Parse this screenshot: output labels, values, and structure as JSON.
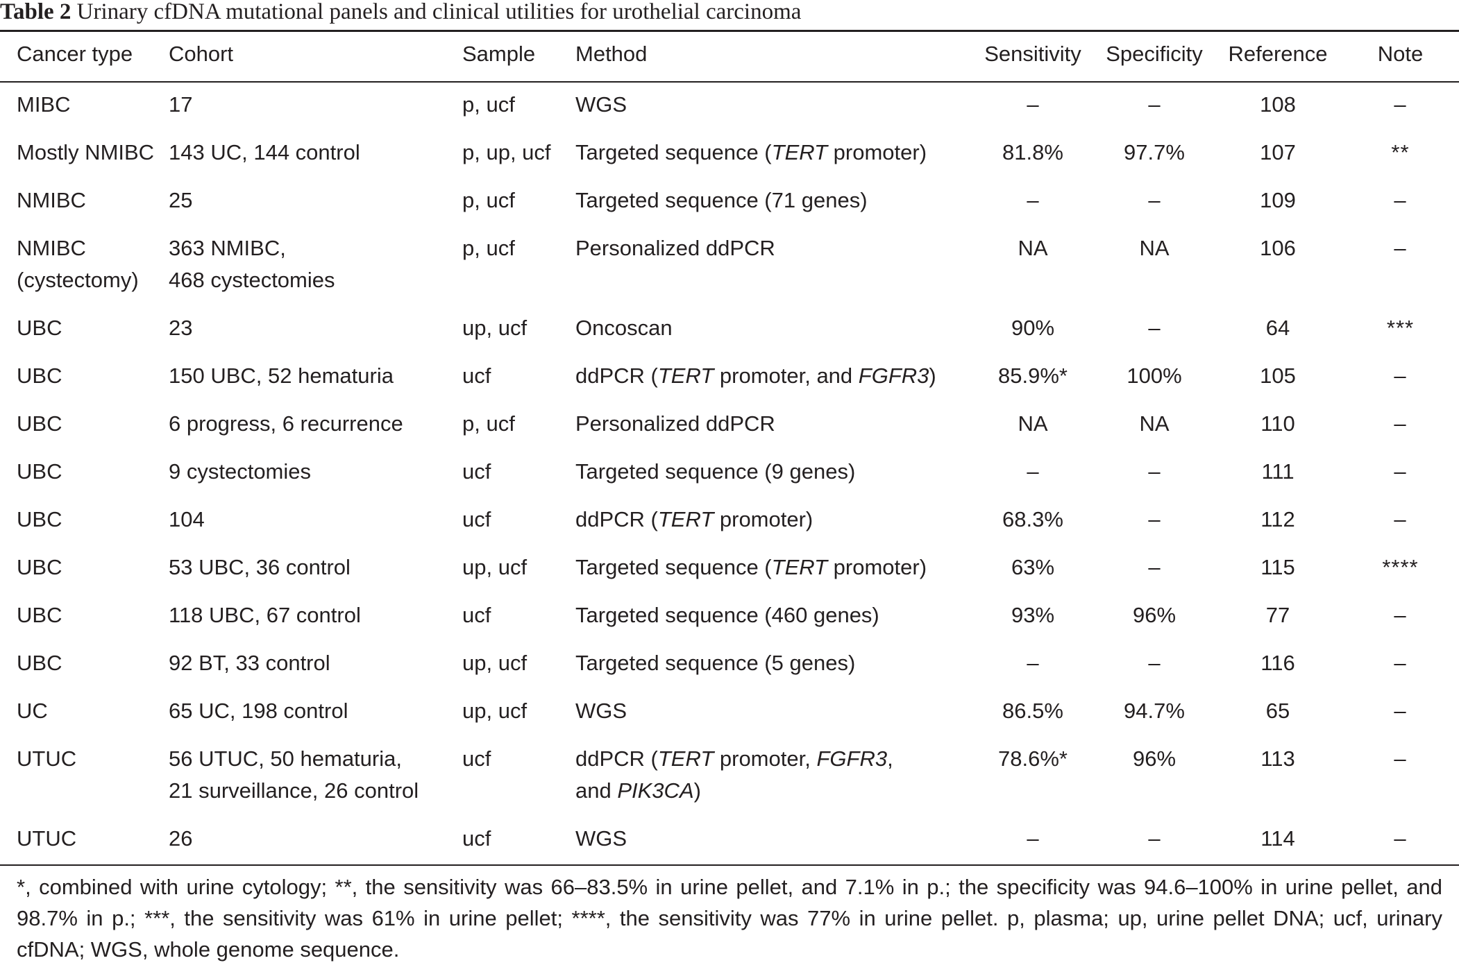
{
  "caption": {
    "label": "Table 2",
    "text": "Urinary cfDNA mutational panels and clinical utilities for urothelial carcinoma"
  },
  "table": {
    "headers": [
      "Cancer type",
      "Cohort",
      "Sample",
      "Method",
      "Sensitivity",
      "Specificity",
      "Reference",
      "Note"
    ],
    "rows": [
      {
        "cancer_type": [
          "MIBC"
        ],
        "cohort": [
          "17"
        ],
        "sample": "p, ucf",
        "method": [
          [
            "WGS"
          ]
        ],
        "sensitivity": "–",
        "specificity": "–",
        "reference": "108",
        "note": "–"
      },
      {
        "cancer_type": [
          "Mostly NMIBC"
        ],
        "cohort": [
          "143 UC, 144 control"
        ],
        "sample": "p, up, ucf",
        "method": [
          [
            "Targeted sequence (",
            "TERT",
            " promoter)"
          ]
        ],
        "sensitivity": "81.8%",
        "specificity": "97.7%",
        "reference": "107",
        "note": "**"
      },
      {
        "cancer_type": [
          "NMIBC"
        ],
        "cohort": [
          "25"
        ],
        "sample": "p, ucf",
        "method": [
          [
            "Targeted sequence (71 genes)"
          ]
        ],
        "sensitivity": "–",
        "specificity": "–",
        "reference": "109",
        "note": "–"
      },
      {
        "cancer_type": [
          "NMIBC",
          "(cystectomy)"
        ],
        "cohort": [
          "363 NMIBC,",
          "468 cystectomies"
        ],
        "sample": "p, ucf",
        "method": [
          [
            "Personalized ddPCR"
          ]
        ],
        "sensitivity": "NA",
        "specificity": "NA",
        "reference": "106",
        "note": "–"
      },
      {
        "cancer_type": [
          "UBC"
        ],
        "cohort": [
          "23"
        ],
        "sample": "up, ucf",
        "method": [
          [
            "Oncoscan"
          ]
        ],
        "sensitivity": "90%",
        "specificity": "–",
        "reference": "64",
        "note": "***"
      },
      {
        "cancer_type": [
          "UBC"
        ],
        "cohort": [
          "150 UBC, 52 hematuria"
        ],
        "sample": "ucf",
        "method": [
          [
            "ddPCR (",
            "TERT",
            " promoter, and ",
            "FGFR3",
            ")"
          ]
        ],
        "sensitivity": "85.9%*",
        "specificity": "100%",
        "reference": "105",
        "note": "–"
      },
      {
        "cancer_type": [
          "UBC"
        ],
        "cohort": [
          "6 progress, 6 recurrence"
        ],
        "sample": "p, ucf",
        "method": [
          [
            "Personalized ddPCR"
          ]
        ],
        "sensitivity": "NA",
        "specificity": "NA",
        "reference": "110",
        "note": "–"
      },
      {
        "cancer_type": [
          "UBC"
        ],
        "cohort": [
          "9 cystectomies"
        ],
        "sample": "ucf",
        "method": [
          [
            "Targeted sequence (9 genes)"
          ]
        ],
        "sensitivity": "–",
        "specificity": "–",
        "reference": "111",
        "note": "–"
      },
      {
        "cancer_type": [
          "UBC"
        ],
        "cohort": [
          "104"
        ],
        "sample": "ucf",
        "method": [
          [
            "ddPCR (",
            "TERT",
            " promoter)"
          ]
        ],
        "sensitivity": "68.3%",
        "specificity": "–",
        "reference": "112",
        "note": "–"
      },
      {
        "cancer_type": [
          "UBC"
        ],
        "cohort": [
          "53 UBC, 36 control"
        ],
        "sample": "up, ucf",
        "method": [
          [
            "Targeted sequence (",
            "TERT",
            " promoter)"
          ]
        ],
        "sensitivity": "63%",
        "specificity": "–",
        "reference": "115",
        "note": "****"
      },
      {
        "cancer_type": [
          "UBC"
        ],
        "cohort": [
          "118 UBC, 67 control"
        ],
        "sample": "ucf",
        "method": [
          [
            "Targeted sequence (460 genes)"
          ]
        ],
        "sensitivity": "93%",
        "specificity": "96%",
        "reference": "77",
        "note": "–"
      },
      {
        "cancer_type": [
          "UBC"
        ],
        "cohort": [
          "92 BT, 33 control"
        ],
        "sample": "up, ucf",
        "method": [
          [
            "Targeted sequence (5 genes)"
          ]
        ],
        "sensitivity": "–",
        "specificity": "–",
        "reference": "116",
        "note": "–"
      },
      {
        "cancer_type": [
          "UC"
        ],
        "cohort": [
          "65 UC, 198 control"
        ],
        "sample": "up, ucf",
        "method": [
          [
            "WGS"
          ]
        ],
        "sensitivity": "86.5%",
        "specificity": "94.7%",
        "reference": "65",
        "note": "–"
      },
      {
        "cancer_type": [
          "UTUC"
        ],
        "cohort": [
          "56 UTUC, 50 hematuria,",
          "21 surveillance, 26 control"
        ],
        "sample": "ucf",
        "method": [
          [
            "ddPCR (",
            "TERT",
            " promoter, ",
            "FGFR3",
            ","
          ],
          [
            "and ",
            "PIK3CA",
            ")"
          ]
        ],
        "sensitivity": "78.6%*",
        "specificity": "96%",
        "reference": "113",
        "note": "–"
      },
      {
        "cancer_type": [
          "UTUC"
        ],
        "cohort": [
          "26"
        ],
        "sample": "ucf",
        "method": [
          [
            "WGS"
          ]
        ],
        "sensitivity": "–",
        "specificity": "–",
        "reference": "114",
        "note": "–"
      }
    ]
  },
  "footnote": "*, combined with urine cytology; **, the sensitivity was 66–83.5% in urine pellet, and 7.1% in p.; the specificity was 94.6–100% in urine pellet, and 98.7% in p.; ***, the sensitivity was 61% in urine pellet; ****, the sensitivity was 77% in urine pellet. p, plasma; up, urine pellet DNA; ucf, urinary cfDNA; WGS, whole genome sequence."
}
